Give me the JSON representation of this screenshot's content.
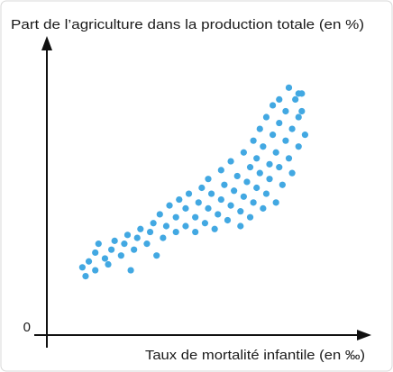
{
  "chart_data": {
    "type": "scatter",
    "title": "Part de l’agriculture dans la production totale (en %)",
    "x_label": "Taux de mortalité infantile (en ‰)",
    "color": "#42a8e2",
    "grid": false,
    "xlim": [
      0,
      100
    ],
    "ylim": [
      0,
      100
    ],
    "yticks": [
      0
    ],
    "x": [
      11,
      12,
      13,
      15,
      15,
      16,
      18,
      19,
      20,
      21,
      23,
      24,
      25,
      26,
      27,
      28,
      29,
      31,
      32,
      33,
      34,
      35,
      36,
      37,
      38,
      40,
      40,
      41,
      43,
      43,
      44,
      46,
      46,
      47,
      48,
      49,
      50,
      50,
      51,
      52,
      53,
      54,
      54,
      55,
      56,
      57,
      57,
      58,
      59,
      60,
      60,
      61,
      61,
      62,
      63,
      63,
      64,
      64,
      65,
      65,
      66,
      66,
      67,
      67,
      68,
      68,
      69,
      69,
      70,
      70,
      71,
      71,
      72,
      72,
      73,
      72,
      74,
      74,
      75,
      75,
      76,
      76,
      77,
      78,
      78,
      78,
      80,
      79,
      79
    ],
    "values": [
      23,
      20,
      25,
      22,
      28,
      31,
      26,
      24,
      29,
      32,
      27,
      31,
      34,
      22,
      29,
      33,
      36,
      31,
      35,
      38,
      27,
      41,
      33,
      37,
      44,
      35,
      40,
      46,
      37,
      43,
      48,
      35,
      40,
      45,
      50,
      38,
      43,
      53,
      48,
      36,
      41,
      46,
      56,
      51,
      39,
      44,
      59,
      49,
      54,
      37,
      42,
      47,
      62,
      52,
      57,
      40,
      45,
      66,
      50,
      60,
      55,
      70,
      43,
      64,
      48,
      74,
      58,
      53,
      68,
      78,
      62,
      45,
      57,
      72,
      51,
      80,
      66,
      76,
      60,
      84,
      70,
      55,
      80,
      64,
      74,
      82,
      68,
      76,
      82
    ]
  }
}
